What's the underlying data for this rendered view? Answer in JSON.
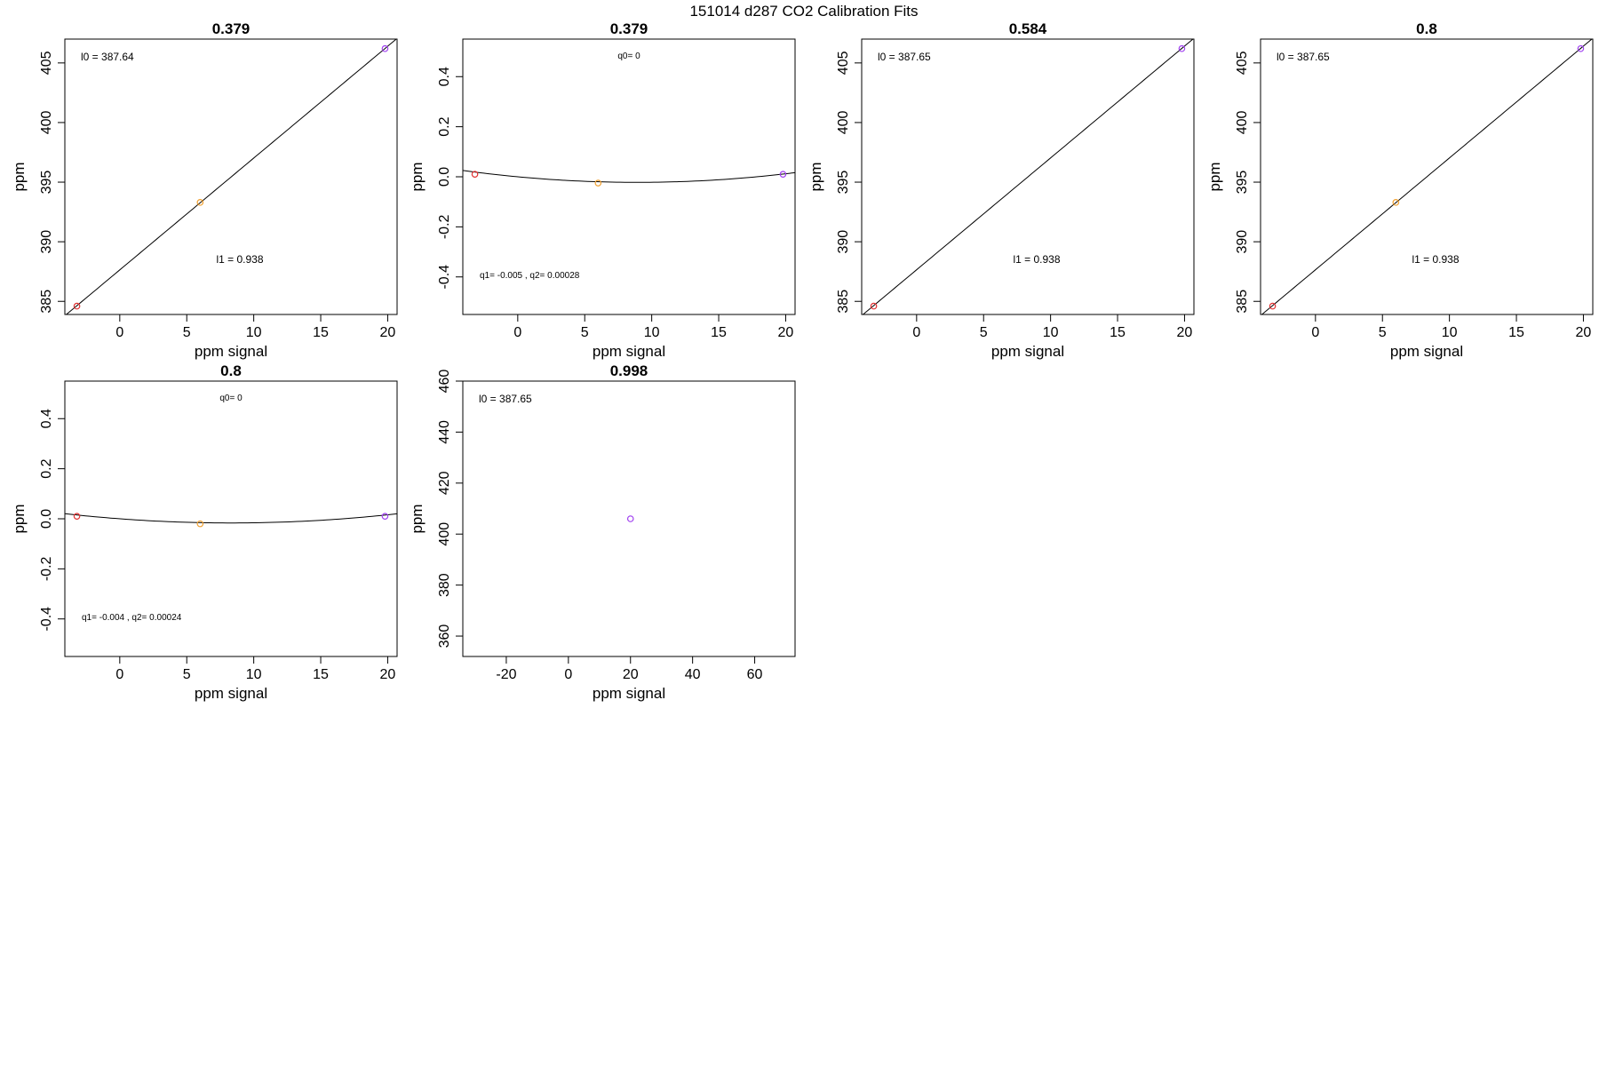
{
  "figure": {
    "title": "151014   d287   CO2 Calibration Fits"
  },
  "chart_data": [
    {
      "type": "scatter",
      "title": "0.379",
      "xlabel": "ppm signal",
      "ylabel": "ppm",
      "xlim": [
        -4.1,
        20.7
      ],
      "ylim": [
        383.9,
        407.0
      ],
      "xticks": [
        0,
        5,
        10,
        15,
        20
      ],
      "yticks": [
        385,
        390,
        395,
        400,
        405
      ],
      "grid": false,
      "points": [
        {
          "x": -3.2,
          "y": 384.6,
          "color": "#e03030"
        },
        {
          "x": 6.0,
          "y": 393.3,
          "color": "#f0a030"
        },
        {
          "x": 19.8,
          "y": 406.2,
          "color": "#a040f0"
        }
      ],
      "fit": {
        "kind": "linear",
        "c0": 387.64,
        "c1": 0.938
      },
      "annotations": [
        {
          "text": "l0 =  387.64",
          "pos": "top-left"
        },
        {
          "text": "l1 =  0.938",
          "pos": "lower-center"
        }
      ]
    },
    {
      "type": "scatter",
      "title": "0.379",
      "xlabel": "ppm signal",
      "ylabel": "ppm",
      "xlim": [
        -4.1,
        20.7
      ],
      "ylim": [
        -0.55,
        0.55
      ],
      "xticks": [
        0,
        5,
        10,
        15,
        20
      ],
      "yticks": [
        -0.4,
        -0.2,
        0.0,
        0.2,
        0.4
      ],
      "grid": false,
      "points": [
        {
          "x": -3.2,
          "y": 0.01,
          "color": "#e03030"
        },
        {
          "x": 6.0,
          "y": -0.025,
          "color": "#f0a030"
        },
        {
          "x": 19.8,
          "y": 0.01,
          "color": "#a040f0"
        }
      ],
      "fit": {
        "kind": "quadratic",
        "c0": 0.0,
        "c1": -0.005,
        "c2": 0.00028
      },
      "annotations": [
        {
          "text": "q0= 0",
          "pos": "top-center"
        },
        {
          "text": "q1= -0.005 , q2= 0.00028",
          "pos": "bottom-left"
        }
      ]
    },
    {
      "type": "scatter",
      "title": "0.584",
      "xlabel": "ppm signal",
      "ylabel": "ppm",
      "xlim": [
        -4.1,
        20.7
      ],
      "ylim": [
        383.9,
        407.0
      ],
      "xticks": [
        0,
        5,
        10,
        15,
        20
      ],
      "yticks": [
        385,
        390,
        395,
        400,
        405
      ],
      "grid": false,
      "points": [
        {
          "x": -3.2,
          "y": 384.6,
          "color": "#e03030"
        },
        {
          "x": 19.8,
          "y": 406.2,
          "color": "#a040f0"
        }
      ],
      "fit": {
        "kind": "linear",
        "c0": 387.65,
        "c1": 0.938
      },
      "annotations": [
        {
          "text": "l0 =  387.65",
          "pos": "top-left"
        },
        {
          "text": "l1 =  0.938",
          "pos": "lower-center"
        }
      ]
    },
    {
      "type": "scatter",
      "title": "0.8",
      "xlabel": "ppm signal",
      "ylabel": "ppm",
      "xlim": [
        -4.1,
        20.7
      ],
      "ylim": [
        383.9,
        407.0
      ],
      "xticks": [
        0,
        5,
        10,
        15,
        20
      ],
      "yticks": [
        385,
        390,
        395,
        400,
        405
      ],
      "grid": false,
      "points": [
        {
          "x": -3.2,
          "y": 384.6,
          "color": "#e03030"
        },
        {
          "x": 6.0,
          "y": 393.3,
          "color": "#f0a030"
        },
        {
          "x": 19.8,
          "y": 406.2,
          "color": "#a040f0"
        }
      ],
      "fit": {
        "kind": "linear",
        "c0": 387.65,
        "c1": 0.938
      },
      "annotations": [
        {
          "text": "l0 =  387.65",
          "pos": "top-left"
        },
        {
          "text": "l1 =  0.938",
          "pos": "lower-center"
        }
      ]
    },
    {
      "type": "scatter",
      "title": "0.8",
      "xlabel": "ppm signal",
      "ylabel": "ppm",
      "xlim": [
        -4.1,
        20.7
      ],
      "ylim": [
        -0.55,
        0.55
      ],
      "xticks": [
        0,
        5,
        10,
        15,
        20
      ],
      "yticks": [
        -0.4,
        -0.2,
        0.0,
        0.2,
        0.4
      ],
      "grid": false,
      "points": [
        {
          "x": -3.2,
          "y": 0.01,
          "color": "#e03030"
        },
        {
          "x": 6.0,
          "y": -0.02,
          "color": "#f0a030"
        },
        {
          "x": 19.8,
          "y": 0.01,
          "color": "#a040f0"
        }
      ],
      "fit": {
        "kind": "quadratic",
        "c0": 0.0,
        "c1": -0.004,
        "c2": 0.00024
      },
      "annotations": [
        {
          "text": "q0= 0",
          "pos": "top-center"
        },
        {
          "text": "q1= -0.004 , q2= 0.00024",
          "pos": "bottom-left"
        }
      ]
    },
    {
      "type": "scatter",
      "title": "0.998",
      "xlabel": "ppm signal",
      "ylabel": "ppm",
      "xlim": [
        -34,
        73
      ],
      "ylim": [
        352,
        460
      ],
      "xticks": [
        -20,
        0,
        20,
        40,
        60
      ],
      "yticks": [
        360,
        380,
        400,
        420,
        440,
        460
      ],
      "grid": false,
      "points": [
        {
          "x": 20,
          "y": 406,
          "color": "#a040f0"
        }
      ],
      "fit": null,
      "annotations": [
        {
          "text": "l0 =  387.65",
          "pos": "top-left"
        }
      ]
    }
  ]
}
